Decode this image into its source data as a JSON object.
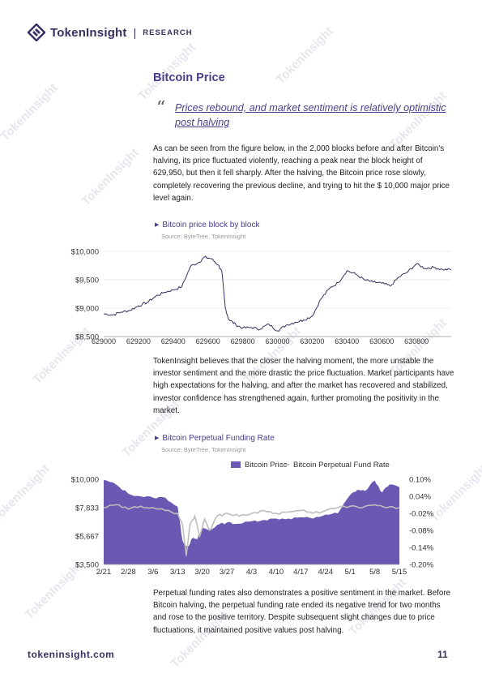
{
  "header": {
    "brand": "TokenInsight",
    "separator": "|",
    "tag": "RESEARCH"
  },
  "section": {
    "title": "Bitcoin Price",
    "quote_mark": "“",
    "subtitle": "Prices rebound, and market sentiment is relatively optimistic post halving"
  },
  "paragraphs": [
    "As can be seen from the figure below, in the 2,000 blocks before and after Bitcoin's halving, its price fluctuated violently, reaching a peak near the block height of 629,950, but then it fell sharply. After the halving, the Bitcoin price rose slowly, completely recovering the previous decline, and trying to hit the $ 10,000 major price level again.",
    "TokenInsight believes that the closer the halving moment, the more unstable the investor sentiment and the more drastic the price fluctuation. Market participants have high expectations for the halving, and after the market has recovered and stabilized, investor confidence has strengthened again, further promoting the positivity in the market.",
    "Perpetual funding rates also demonstrates a positive sentiment in the market. Before Bitcoin halving, the perpetual funding rate ended its negative trend for two months and rose to the positive territory. Despite subsequent slight changes due to price fluctuations, it maintained positive values post halving."
  ],
  "chart_data": [
    {
      "type": "line",
      "title": "Bitcoin price block by block",
      "source": "Source: ByteTree, TokenInsight",
      "xlabel": "",
      "ylabel": "",
      "x_ticks": [
        "629000",
        "629200",
        "629400",
        "629600",
        "629800",
        "630000",
        "630200",
        "630400",
        "630600",
        "630800"
      ],
      "y_ticks": [
        "$10,000",
        "$9,500",
        "$9,000",
        "$8,500"
      ],
      "xlim": [
        629000,
        631000
      ],
      "ylim": [
        8500,
        10000
      ],
      "color": "#3a2f63",
      "series": [
        {
          "x": [
            629000,
            629050,
            629100,
            629150,
            629200,
            629250,
            629300,
            629350,
            629400,
            629450,
            629500,
            629550,
            629580,
            629620,
            629660,
            629680,
            629700,
            629720,
            629760,
            629800,
            629850,
            629900,
            629950,
            630000,
            630050,
            630100,
            630150,
            630200,
            630250,
            630300,
            630350,
            630400,
            630450,
            630500,
            630550,
            630600,
            630650,
            630700,
            630750,
            630800,
            630850,
            630900,
            630950,
            631000
          ],
          "values": [
            8900,
            8880,
            8930,
            8960,
            9040,
            9100,
            9210,
            9280,
            9320,
            9380,
            9740,
            9810,
            9900,
            9870,
            9760,
            9640,
            9000,
            8800,
            8710,
            8650,
            8660,
            8630,
            8720,
            8600,
            8700,
            8750,
            8790,
            8860,
            9160,
            9350,
            9450,
            9660,
            9600,
            9500,
            9460,
            9440,
            9390,
            9550,
            9640,
            9780,
            9700,
            9720,
            9680,
            9680
          ]
        }
      ]
    },
    {
      "type": "area",
      "title": "Bitcoin Perpetual Funding Rate",
      "source": "Source: ByteTree, TokenInsight",
      "legend": [
        "Bitcoin Price",
        "Bitcoin Perpetual Fund Rate"
      ],
      "legend_placement": "top",
      "categories": [
        "2/21",
        "2/28",
        "3/6",
        "3/13",
        "3/20",
        "3/27",
        "4/3",
        "4/10",
        "4/17",
        "4/24",
        "5/1",
        "5/8",
        "5/15"
      ],
      "y_ticks_left": [
        "$10,000",
        "$7,833",
        "$5,667",
        "$3,500"
      ],
      "y_ticks_right": [
        "0.10%",
        "0.04%",
        "-0.02%",
        "-0.08%",
        "-0.14%",
        "-0.20%"
      ],
      "ylim_left": [
        3500,
        10000
      ],
      "ylim_right": [
        -0.2,
        0.1
      ],
      "colors": {
        "price": "#6b58b3",
        "rate": "#bdbdbd"
      },
      "series": [
        {
          "name": "Bitcoin Price",
          "x": [
            0,
            0.5,
            1,
            1.5,
            2,
            2.5,
            3,
            3.2,
            3.4,
            3.6,
            3.8,
            4,
            4.3,
            4.6,
            5,
            5.5,
            6,
            6.5,
            7,
            7.5,
            8,
            8.5,
            9,
            9.5,
            10,
            10.3,
            10.6,
            11,
            11.3,
            11.6,
            12
          ],
          "values": [
            9950,
            9600,
            8900,
            8700,
            8600,
            8600,
            7900,
            5300,
            4800,
            5500,
            5400,
            6300,
            6100,
            6500,
            6700,
            6600,
            6800,
            6900,
            7000,
            7000,
            7100,
            7000,
            7300,
            7400,
            8800,
            9200,
            9100,
            9900,
            9000,
            9600,
            9400
          ]
        },
        {
          "name": "Bitcoin Perpetual Fund Rate",
          "x": [
            0,
            0.5,
            1,
            1.5,
            2,
            2.5,
            3,
            3.2,
            3.35,
            3.5,
            3.7,
            3.9,
            4.1,
            4.3,
            4.6,
            5,
            5.5,
            6,
            6.5,
            7,
            7.5,
            8,
            8.5,
            9,
            9.5,
            10,
            10.5,
            11,
            11.5,
            12
          ],
          "values": [
            0.0,
            0.01,
            -0.005,
            0.005,
            0.0,
            -0.01,
            -0.02,
            -0.06,
            -0.17,
            -0.06,
            -0.03,
            -0.1,
            -0.04,
            -0.08,
            -0.03,
            -0.02,
            -0.03,
            -0.02,
            -0.01,
            -0.02,
            -0.015,
            -0.01,
            -0.02,
            -0.01,
            0.0,
            0.005,
            0.0,
            0.01,
            0.0,
            0.0
          ]
        }
      ]
    }
  ],
  "footer": {
    "url": "tokeninsight.com",
    "page": "11"
  },
  "watermark": "TokenInsight"
}
